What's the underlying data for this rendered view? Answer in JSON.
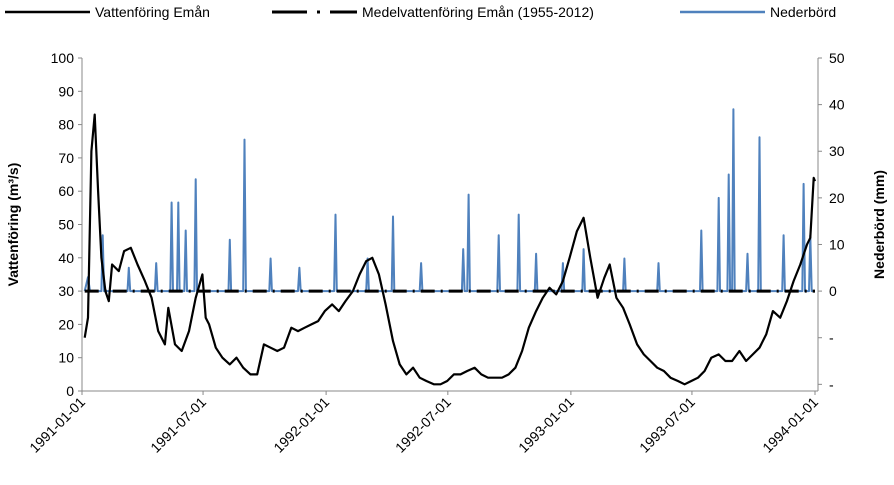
{
  "chart_data": {
    "type": "line",
    "title": null,
    "ylabel": "Vattenföring (m³/s)",
    "y2label": "Nederbörd (mm)",
    "xlim": [
      "1991-01-01",
      "1994-01-01"
    ],
    "xticks": [
      "1991-01-01",
      "1991-07-01",
      "1992-01-01",
      "1992-07-01",
      "1993-01-01",
      "1993-07-01",
      "1994-01-01"
    ],
    "ylim": [
      0,
      100
    ],
    "yticks": [
      0,
      10,
      20,
      30,
      40,
      50,
      60,
      70,
      80,
      90,
      100
    ],
    "y2lim": [
      -21.43,
      50
    ],
    "y2ticks": [
      {
        "value": -20,
        "label": "-"
      },
      {
        "value": -10,
        "label": "-"
      },
      0,
      10,
      20,
      30,
      40,
      50
    ],
    "legend": "top",
    "series": [
      {
        "name": "Vattenföring Emån",
        "color": "#000000",
        "style": "solid",
        "x": [
          "1991-01-05",
          "1991-01-10",
          "1991-01-15",
          "1991-01-20",
          "1991-01-25",
          "1991-01-30",
          "1991-02-05",
          "1991-02-10",
          "1991-02-15",
          "1991-02-25",
          "1991-03-05",
          "1991-03-15",
          "1991-03-25",
          "1991-04-05",
          "1991-04-15",
          "1991-04-25",
          "1991-05-05",
          "1991-05-10",
          "1991-05-20",
          "1991-05-30",
          "1991-06-10",
          "1991-06-20",
          "1991-06-30",
          "1991-07-05",
          "1991-07-10",
          "1991-07-20",
          "1991-07-30",
          "1991-08-10",
          "1991-08-20",
          "1991-08-30",
          "1991-09-10",
          "1991-09-20",
          "1991-09-30",
          "1991-10-10",
          "1991-10-20",
          "1991-10-30",
          "1991-11-10",
          "1991-11-20",
          "1991-11-30",
          "1991-12-10",
          "1991-12-20",
          "1991-12-30",
          "1992-01-10",
          "1992-01-20",
          "1992-01-30",
          "1992-02-10",
          "1992-02-20",
          "1992-03-01",
          "1992-03-10",
          "1992-03-20",
          "1992-03-30",
          "1992-04-10",
          "1992-04-20",
          "1992-04-30",
          "1992-05-10",
          "1992-05-20",
          "1992-05-30",
          "1992-06-10",
          "1992-06-20",
          "1992-06-30",
          "1992-07-10",
          "1992-07-20",
          "1992-07-30",
          "1992-08-10",
          "1992-08-20",
          "1992-08-30",
          "1992-09-10",
          "1992-09-20",
          "1992-09-30",
          "1992-10-10",
          "1992-10-20",
          "1992-10-30",
          "1992-11-10",
          "1992-11-20",
          "1992-11-30",
          "1992-12-10",
          "1992-12-20",
          "1992-12-30",
          "1993-01-10",
          "1993-01-20",
          "1993-01-30",
          "1993-02-10",
          "1993-02-20",
          "1993-02-28",
          "1993-03-10",
          "1993-03-20",
          "1993-03-30",
          "1993-04-10",
          "1993-04-20",
          "1993-04-30",
          "1993-05-10",
          "1993-05-20",
          "1993-05-30",
          "1993-06-10",
          "1993-06-20",
          "1993-06-30",
          "1993-07-10",
          "1993-07-20",
          "1993-07-30",
          "1993-08-10",
          "1993-08-20",
          "1993-08-30",
          "1993-09-10",
          "1993-09-20",
          "1993-09-30",
          "1993-10-10",
          "1993-10-20",
          "1993-10-30",
          "1993-11-10",
          "1993-11-20",
          "1993-11-30",
          "1993-12-10",
          "1993-12-20",
          "1993-12-25",
          "1993-12-30",
          "1994-01-01"
        ],
        "values": [
          16,
          22,
          72,
          83,
          60,
          40,
          30,
          27,
          38,
          36,
          42,
          43,
          38,
          33,
          28,
          18,
          14,
          25,
          14,
          12,
          18,
          28,
          35,
          22,
          20,
          13,
          10,
          8,
          10,
          7,
          5,
          5,
          14,
          13,
          12,
          13,
          19,
          18,
          19,
          20,
          21,
          24,
          26,
          24,
          27,
          30,
          35,
          39,
          40,
          35,
          26,
          15,
          8,
          5,
          7,
          4,
          3,
          2,
          2,
          3,
          5,
          5,
          6,
          7,
          5,
          4,
          4,
          4,
          5,
          7,
          12,
          19,
          24,
          28,
          31,
          29,
          33,
          40,
          48,
          52,
          40,
          28,
          34,
          38,
          28,
          25,
          20,
          14,
          11,
          9,
          7,
          6,
          4,
          3,
          2,
          3,
          4,
          6,
          10,
          11,
          9,
          9,
          12,
          9,
          11,
          13,
          17,
          24,
          22,
          27,
          33,
          38,
          44,
          46,
          64,
          63
        ]
      },
      {
        "name": "Medelvattenföring Emån (1955-2012)",
        "color": "#000000",
        "style": "dashdot",
        "x": [
          "1991-01-05",
          "1991-07-01",
          "1992-01-01",
          "1992-07-01",
          "1993-01-01",
          "1993-07-01",
          "1994-01-01"
        ],
        "values": [
          30,
          30,
          30,
          30,
          30,
          30,
          30
        ]
      },
      {
        "name": "Nederbörd",
        "color": "#4f81bd",
        "style": "solid",
        "axis": "y2",
        "x": [
          "1991-01-05",
          "1991-01-10",
          "1991-01-13",
          "1991-01-30",
          "1991-02-01",
          "1991-02-03",
          "1991-03-10",
          "1991-03-12",
          "1991-03-14",
          "1991-04-20",
          "1991-04-22",
          "1991-04-24",
          "1991-05-13",
          "1991-05-15",
          "1991-05-17",
          "1991-05-23",
          "1991-05-25",
          "1991-05-27",
          "1991-06-03",
          "1991-06-05",
          "1991-06-07",
          "1991-06-18",
          "1991-06-20",
          "1991-06-22",
          "1991-08-08",
          "1991-08-10",
          "1991-08-12",
          "1991-08-30",
          "1991-09-01",
          "1991-09-03",
          "1991-10-08",
          "1991-10-10",
          "1991-10-12",
          "1991-11-20",
          "1991-11-22",
          "1991-11-24",
          "1992-01-13",
          "1992-01-15",
          "1992-01-17",
          "1992-03-01",
          "1992-03-03",
          "1992-03-05",
          "1992-04-08",
          "1992-04-10",
          "1992-04-12",
          "1992-05-20",
          "1992-05-22",
          "1992-05-24",
          "1992-07-22",
          "1992-07-24",
          "1992-07-26",
          "1992-07-30",
          "1992-08-01",
          "1992-08-03",
          "1992-09-13",
          "1992-09-15",
          "1992-09-17",
          "1992-10-13",
          "1992-10-15",
          "1992-10-17",
          "1992-11-08",
          "1992-11-10",
          "1992-11-12",
          "1992-12-18",
          "1992-12-20",
          "1992-12-22",
          "1993-01-18",
          "1993-01-20",
          "1993-01-22",
          "1993-03-20",
          "1993-03-22",
          "1993-03-24",
          "1993-05-10",
          "1993-05-12",
          "1993-05-14",
          "1993-07-13",
          "1993-07-15",
          "1993-07-17",
          "1993-08-08",
          "1993-08-10",
          "1993-08-12",
          "1993-08-23",
          "1993-08-25",
          "1993-08-27",
          "1993-08-30",
          "1993-09-01",
          "1993-09-03",
          "1993-09-20",
          "1993-09-22",
          "1993-09-24",
          "1993-10-08",
          "1993-10-10",
          "1993-10-12",
          "1993-11-13",
          "1993-11-15",
          "1993-11-17",
          "1993-12-13",
          "1993-12-15",
          "1993-12-17",
          "1993-12-23",
          "1993-12-25",
          "1993-12-27",
          "1994-01-01"
        ],
        "values": [
          0,
          3,
          0,
          0,
          12,
          0,
          0,
          5,
          0,
          0,
          6,
          0,
          0,
          19,
          0,
          0,
          19,
          0,
          0,
          13,
          0,
          0,
          24,
          0,
          0,
          11,
          0,
          0,
          32.5,
          0,
          0,
          7,
          0,
          0,
          5,
          0,
          0,
          16.4,
          0,
          0,
          7,
          0,
          0,
          16,
          0,
          0,
          6,
          0,
          0,
          9,
          0,
          0,
          20.7,
          0,
          0,
          12,
          0,
          0,
          16.4,
          0,
          0,
          8,
          0,
          0,
          6,
          0,
          0,
          9,
          0,
          0,
          7,
          0,
          0,
          6,
          0,
          0,
          13,
          0,
          0,
          20,
          0,
          0,
          25,
          0,
          0,
          39,
          0,
          0,
          8,
          0,
          0,
          33,
          0,
          0,
          12,
          0,
          0,
          23,
          0,
          0,
          12,
          0,
          0
        ]
      }
    ]
  }
}
